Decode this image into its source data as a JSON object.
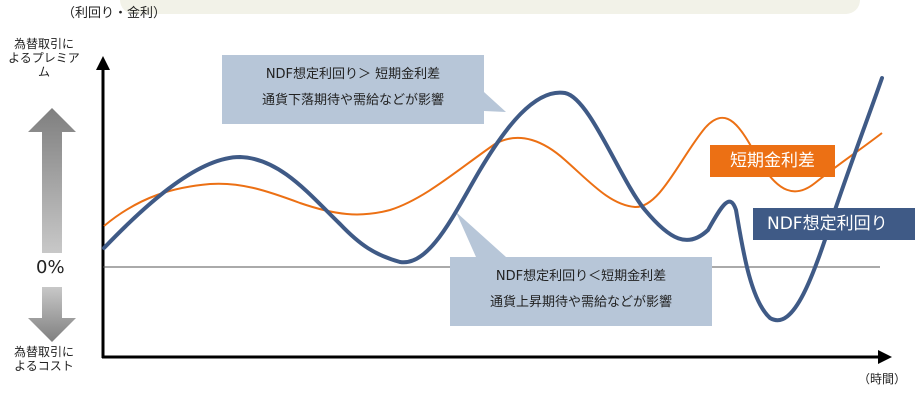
{
  "axes": {
    "y_unit": "（利回り・金利）",
    "y_top": "為替取引によるプレミアム",
    "y_bottom": "為替取引によるコスト",
    "zero": "0%",
    "x_unit": "（時間）"
  },
  "callouts": {
    "top": {
      "line1": "NDF想定利回り＞ 短期金利差",
      "line2": "通貨下落期待や需給などが影響"
    },
    "bottom": {
      "line1": "NDF想定利回り＜短期金利差",
      "line2": "通貨上昇期待や需給などが影響"
    }
  },
  "series": {
    "short_rate": "短期金利差",
    "ndf_yield": "NDF想定利回り"
  },
  "colors": {
    "short_rate": "#ec7014",
    "ndf_yield": "#3f5a86",
    "callout_fill": "#b7c6d8",
    "arrow_fill": "#8c8c8c",
    "axis": "#000000"
  }
}
